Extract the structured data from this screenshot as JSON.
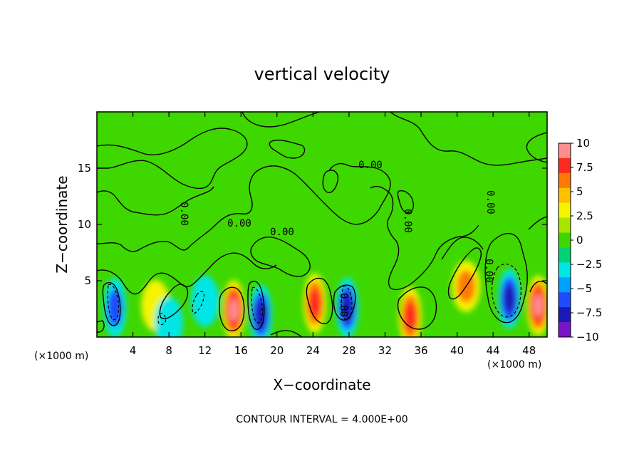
{
  "chart_data": {
    "type": "heatmap",
    "title": "vertical velocity",
    "xlabel": "X−coordinate",
    "ylabel": "Z−coordinate",
    "x_unit_left": "(×1000 m)",
    "x_unit_right": "(×1000 m)",
    "xlim": [
      0,
      50
    ],
    "ylim": [
      0,
      20
    ],
    "x_ticks": [
      "4",
      "8",
      "12",
      "16",
      "20",
      "24",
      "28",
      "32",
      "36",
      "40",
      "44",
      "48"
    ],
    "y_ticks": [
      "5",
      "10",
      "15"
    ],
    "colorbar": {
      "range": [
        -10,
        10
      ],
      "ticks": [
        "10",
        "7.5",
        "5",
        "2.5",
        "0",
        "−2.5",
        "−5",
        "−7.5",
        "−10"
      ],
      "colors": [
        "#ff8f8f",
        "#ff2a1e",
        "#ff7a00",
        "#ffc000",
        "#f4f400",
        "#a6e600",
        "#3fd700",
        "#00d278",
        "#00e6e6",
        "#00a0ff",
        "#1e4bff",
        "#1a1ab8",
        "#7a14c8"
      ]
    },
    "contour_labels": [
      "0.00",
      "0.00",
      "0.00",
      "0.00",
      "0.00",
      "0.00",
      "0.00",
      "0.00"
    ],
    "features": [
      {
        "x": 2.0,
        "z": 2.6,
        "value": -6
      },
      {
        "x": 15.2,
        "z": 2.4,
        "value": 9
      },
      {
        "x": 18.2,
        "z": 2.0,
        "value": -7
      },
      {
        "x": 24.2,
        "z": 3.0,
        "value": 7
      },
      {
        "x": 27.8,
        "z": 2.6,
        "value": -8
      },
      {
        "x": 34.8,
        "z": 1.8,
        "value": 8
      },
      {
        "x": 41.0,
        "z": 4.5,
        "value": 5
      },
      {
        "x": 45.8,
        "z": 3.4,
        "value": -8
      },
      {
        "x": 49.0,
        "z": 2.8,
        "value": 9
      },
      {
        "x": 6.5,
        "z": 2.8,
        "value": 3
      },
      {
        "x": 12.0,
        "z": 3.2,
        "value": -3
      },
      {
        "x": 8.0,
        "z": 1.3,
        "value": -3
      }
    ],
    "grid": false
  },
  "footer": {
    "contour_interval": "CONTOUR INTERVAL = 4.000E+00"
  }
}
